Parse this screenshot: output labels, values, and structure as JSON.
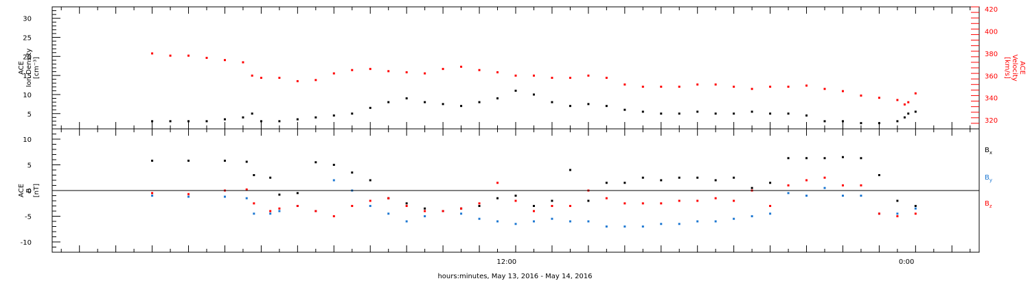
{
  "chart_data": [
    {
      "type": "scatter",
      "panel": "plasma",
      "ylabel_left": [
        "ACE",
        "Ion Density",
        "[cm⁻³]"
      ],
      "ylabel_right": [
        "ACE",
        "Velocity",
        "[km/s]"
      ],
      "ylim_left": [
        1,
        33
      ],
      "yticks_left": [
        5,
        10,
        15,
        20,
        25,
        30
      ],
      "ylim_right": [
        312,
        422
      ],
      "yticks_right": [
        320,
        340,
        360,
        380,
        400,
        420
      ],
      "color_left": "#000000",
      "color_right": "#ff0000",
      "series": [
        {
          "axis": "left",
          "color": "#000000",
          "x": [
            0,
            1,
            2,
            3,
            4,
            5,
            5.5,
            6,
            7,
            8,
            9,
            10,
            11,
            12,
            13,
            14,
            15,
            16,
            17,
            18,
            19,
            20,
            21,
            22,
            23,
            24,
            25,
            26,
            27,
            28,
            29,
            30,
            31,
            32,
            33,
            34,
            35,
            36,
            37,
            38,
            39,
            40,
            41,
            41.4,
            41.6,
            42
          ],
          "y": [
            3,
            3,
            3,
            3,
            3.5,
            4,
            5,
            3,
            3,
            3.5,
            4,
            4.5,
            5,
            6.5,
            8,
            9,
            8,
            7.5,
            7,
            8,
            9,
            11,
            10,
            8,
            7,
            7.5,
            7,
            6,
            5.5,
            5,
            5,
            5.5,
            5,
            5,
            5.5,
            5,
            5,
            4.5,
            3,
            3,
            2.5,
            2.5,
            3,
            4,
            5,
            5.5
          ]
        },
        {
          "axis": "right",
          "color": "#ff0000",
          "x": [
            0,
            1,
            2,
            3,
            4,
            5,
            5.5,
            6,
            7,
            8,
            9,
            10,
            11,
            12,
            13,
            14,
            15,
            16,
            17,
            18,
            19,
            20,
            21,
            22,
            23,
            24,
            25,
            26,
            27,
            28,
            29,
            30,
            31,
            32,
            33,
            34,
            35,
            36,
            37,
            38,
            39,
            40,
            41,
            41.4,
            41.6,
            42
          ],
          "y": [
            380,
            378,
            378,
            376,
            374,
            372,
            360,
            358,
            358,
            355,
            356,
            362,
            365,
            366,
            364,
            363,
            362,
            366,
            368,
            365,
            363,
            360,
            360,
            358,
            358,
            360,
            358,
            352,
            350,
            350,
            350,
            352,
            352,
            350,
            348,
            350,
            350,
            351,
            348,
            346,
            342,
            340,
            338,
            334,
            336,
            344
          ]
        }
      ],
      "hline": null
    },
    {
      "type": "scatter",
      "panel": "field",
      "ylabel_left": [
        "ACE",
        "B",
        "[nT]"
      ],
      "ylim": [
        -12,
        12
      ],
      "yticks": [
        -10,
        -5,
        0,
        5,
        10
      ],
      "hline": 0,
      "legend": [
        {
          "label": "Bx",
          "main": "B",
          "sub": "x",
          "color": "#000000"
        },
        {
          "label": "By",
          "main": "B",
          "sub": "y",
          "color": "#1e78d2"
        },
        {
          "label": "Bz",
          "main": "B",
          "sub": "z",
          "color": "#ff0000"
        }
      ],
      "series": [
        {
          "name": "Bx",
          "color": "#000000",
          "x": [
            0,
            2,
            4,
            5.2,
            5.6,
            6.5,
            7,
            8,
            9,
            10,
            11,
            12,
            13,
            14,
            15,
            16,
            17,
            18,
            19,
            20,
            21,
            22,
            23,
            24,
            25,
            26,
            27,
            28,
            29,
            30,
            31,
            32,
            33,
            34,
            35,
            36,
            37,
            38,
            39,
            40,
            41,
            42
          ],
          "y": [
            5.8,
            5.8,
            5.8,
            5.6,
            3,
            2.5,
            -0.8,
            -0.5,
            5.5,
            5,
            3.5,
            2,
            -1.5,
            -2.5,
            -3.5,
            -4,
            -3.5,
            -3,
            -1.5,
            -1,
            -3,
            -2,
            4,
            -2,
            1.5,
            1.5,
            2.5,
            2,
            2.5,
            2.5,
            2,
            2.5,
            0.5,
            1.5,
            6.3,
            6.3,
            6.3,
            6.5,
            6.3,
            3,
            -2,
            -3
          ]
        },
        {
          "name": "By",
          "color": "#1e78d2",
          "x": [
            0,
            2,
            4,
            5.2,
            5.6,
            6.5,
            7,
            8,
            9,
            10,
            11,
            12,
            13,
            14,
            15,
            16,
            17,
            18,
            19,
            20,
            21,
            22,
            23,
            24,
            25,
            26,
            27,
            28,
            29,
            30,
            31,
            32,
            33,
            34,
            35,
            36,
            37,
            38,
            39,
            40,
            41,
            42
          ],
          "y": [
            -1,
            -1.2,
            -1.2,
            -1.5,
            -4.5,
            -4.5,
            -4,
            -3,
            -4,
            2,
            0,
            -3,
            -4.5,
            -6,
            -5,
            -4,
            -4.5,
            -5.5,
            -6,
            -6.5,
            -6,
            -5.5,
            -6,
            -6,
            -7,
            -7,
            -7,
            -6.5,
            -6.5,
            -6,
            -6,
            -5.5,
            -5,
            -4.5,
            -0.5,
            -1,
            0.5,
            -1,
            -1,
            -4.5,
            -4.5,
            -3.5
          ]
        },
        {
          "name": "Bz",
          "color": "#ff0000",
          "x": [
            0,
            2,
            4,
            5.2,
            5.6,
            6.5,
            7,
            8,
            9,
            10,
            11,
            12,
            13,
            14,
            15,
            16,
            17,
            18,
            19,
            20,
            21,
            22,
            23,
            24,
            25,
            26,
            27,
            28,
            29,
            30,
            31,
            32,
            33,
            34,
            35,
            36,
            37,
            38,
            39,
            40,
            41,
            42
          ],
          "y": [
            -0.5,
            -0.7,
            0,
            0.2,
            -2.5,
            -4,
            -3.5,
            -3,
            -4,
            -5,
            -3,
            -2,
            -1.5,
            -3,
            -4,
            -4,
            -3.5,
            -2.5,
            1.5,
            -2,
            -4,
            -3,
            -3,
            0,
            -1.5,
            -2.5,
            -2.5,
            -2.5,
            -2,
            -2,
            -1.5,
            -2,
            0,
            -3,
            1,
            2,
            2.5,
            1,
            1,
            -4.5,
            -5,
            -4.5
          ]
        }
      ]
    }
  ],
  "x_axis": {
    "domain": [
      -5.5,
      45.5
    ],
    "label": "hours:minutes, May 13, 2016 - May 14, 2016",
    "tick_labels": [
      {
        "x": 19.5,
        "text": "12:00"
      },
      {
        "x": 41.5,
        "text": "0:00"
      }
    ]
  }
}
